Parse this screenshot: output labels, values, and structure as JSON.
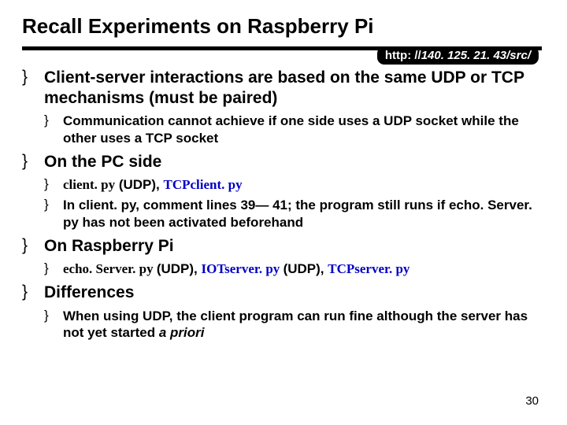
{
  "colors": {
    "background": "#ffffff",
    "text": "#000000",
    "accent_blue": "#0200c4",
    "badge_bg": "#000000",
    "badge_text": "#ffffff"
  },
  "typography": {
    "title_fontsize": 26,
    "body_fontsize": 21,
    "sub_fontsize": 17,
    "pagenum_fontsize": 15,
    "title_weight": "bold",
    "body_weight": "bold"
  },
  "bullets": {
    "level1": "}",
    "level2": "}"
  },
  "title": "Recall Experiments on Raspberry Pi",
  "url_badge": {
    "prefix": "http: //",
    "ip": "140. 125. 21. 43/src/"
  },
  "items": [
    {
      "text": "Client-server interactions are based on the same UDP or TCP mechanisms (must be paired)",
      "sub": [
        {
          "runs": [
            {
              "t": "Communication cannot achieve if one side uses a UDP socket while the other uses a TCP socket"
            }
          ]
        }
      ]
    },
    {
      "text": "On the PC side",
      "sub": [
        {
          "runs": [
            {
              "t": "client. py",
              "serif": true
            },
            {
              "t": " (UDP), "
            },
            {
              "t": "TCPclient. py",
              "serif": true,
              "blue": true
            }
          ]
        },
        {
          "runs": [
            {
              "t": "In client. py, comment lines 39— 41; the program still runs if echo. Server. py has not been activated beforehand"
            }
          ]
        }
      ]
    },
    {
      "text": "On Raspberry Pi",
      "sub": [
        {
          "runs": [
            {
              "t": "echo. Server. py ",
              "serif": true
            },
            {
              "t": "(UDP), "
            },
            {
              "t": "IOTserver. py ",
              "serif": true,
              "blue": true
            },
            {
              "t": "(UDP), "
            },
            {
              "t": "TCPserver. py",
              "serif": true,
              "blue": true
            }
          ]
        }
      ]
    },
    {
      "text": "Differences",
      "sub": [
        {
          "runs": [
            {
              "t": "When using UDP, the client program can run fine although the server has not yet started "
            },
            {
              "t": "a priori",
              "ital": true
            }
          ]
        }
      ]
    }
  ],
  "page_number": "30"
}
